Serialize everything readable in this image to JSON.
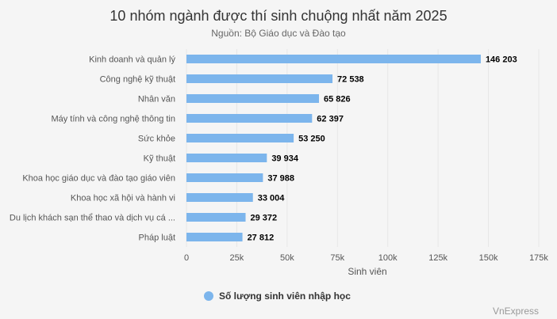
{
  "chart_data": {
    "type": "bar",
    "orientation": "horizontal",
    "title": "10 nhóm ngành được thí sinh chuộng nhất năm 2025",
    "subtitle": "Nguồn: Bộ Giáo dục và Đào tạo",
    "xlabel": "Sinh viên",
    "ylabel": "",
    "xlim": [
      0,
      175000
    ],
    "x_ticks": [
      0,
      25000,
      50000,
      75000,
      100000,
      125000,
      150000,
      175000
    ],
    "x_tick_labels": [
      "0",
      "25k",
      "50k",
      "75k",
      "100k",
      "125k",
      "150k",
      "175k"
    ],
    "categories": [
      "Kinh doanh và quản lý",
      "Công nghệ kỹ thuật",
      "Nhân văn",
      "Máy tính và công nghệ thông tin",
      "Sức khỏe",
      "Kỹ thuật",
      "Khoa học giáo dục và đào tạo giáo viên",
      "Khoa học xã hội và hành vi",
      "Du lịch khách sạn thể thao và dịch vụ cá ...",
      "Pháp luật"
    ],
    "series": [
      {
        "name": "Số lượng sinh viên nhập học",
        "color": "#7cb5ec",
        "values": [
          146203,
          72538,
          65826,
          62397,
          53250,
          39934,
          37988,
          33004,
          29372,
          27812
        ],
        "data_labels": [
          "146 203",
          "72 538",
          "65 826",
          "62 397",
          "53 250",
          "39 934",
          "37 988",
          "33 004",
          "29 372",
          "27 812"
        ]
      }
    ],
    "grid": true,
    "legend": "bottom-center"
  },
  "credit": "VnExpress",
  "colors": {
    "background": "#f5f5f5",
    "bar": "#7cb5ec",
    "grid": "#e6e6e6"
  }
}
